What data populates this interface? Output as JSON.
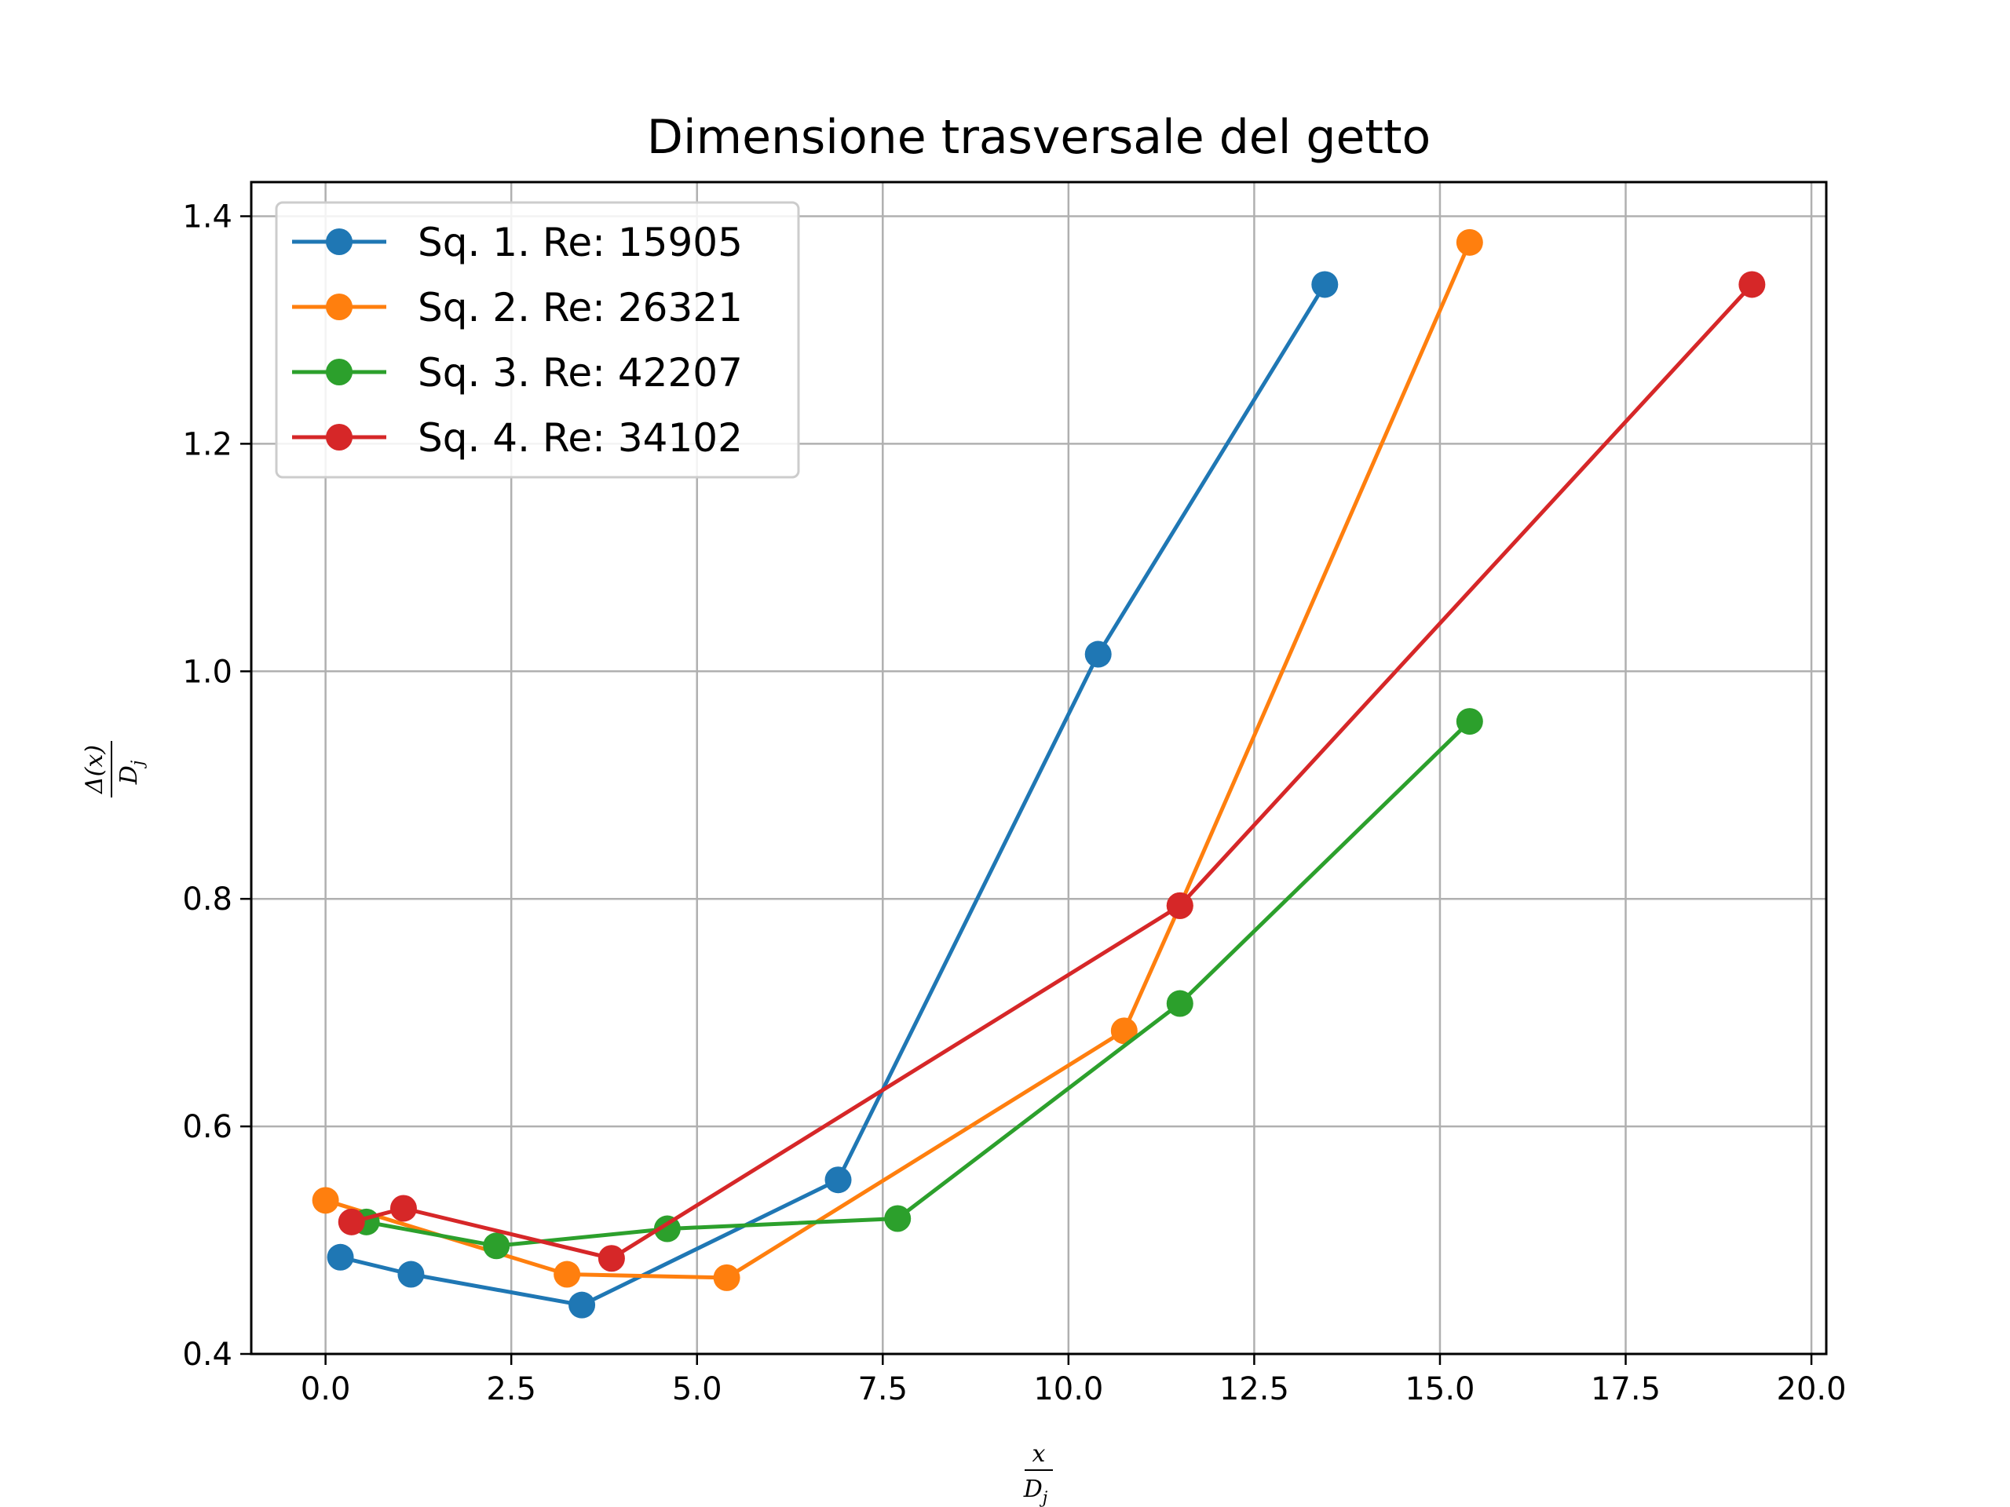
{
  "chart_data": {
    "type": "line",
    "title": "Dimensione trasversale del getto",
    "xlabel": {
      "numerator": "x",
      "denominator": "D",
      "denominator_sub": "j"
    },
    "ylabel": {
      "numerator": "Δ(x)",
      "denominator": "D",
      "denominator_sub": "j"
    },
    "xlim": [
      -1.0,
      20.2
    ],
    "ylim": [
      0.4,
      1.43
    ],
    "xticks": [
      0.0,
      2.5,
      5.0,
      7.5,
      10.0,
      12.5,
      15.0,
      17.5,
      20.0
    ],
    "xtick_labels": [
      "0.0",
      "2.5",
      "5.0",
      "7.5",
      "10.0",
      "12.5",
      "15.0",
      "17.5",
      "20.0"
    ],
    "yticks": [
      0.4,
      0.6,
      0.8,
      1.0,
      1.2,
      1.4
    ],
    "ytick_labels": [
      "0.4",
      "0.6",
      "0.8",
      "1.0",
      "1.2",
      "1.4"
    ],
    "grid": true,
    "legend_position": "upper-left",
    "series": [
      {
        "name": "Sq. 1. Re: 15905",
        "color": "#1f77b4",
        "x": [
          0.2,
          1.15,
          3.45,
          6.9,
          10.4,
          13.45
        ],
        "y": [
          0.485,
          0.47,
          0.443,
          0.553,
          1.015,
          1.34
        ]
      },
      {
        "name": "Sq. 2. Re: 26321",
        "color": "#ff7f0e",
        "x": [
          0.0,
          3.25,
          5.4,
          10.75,
          11.5,
          15.4
        ],
        "y": [
          0.535,
          0.47,
          0.467,
          0.684,
          0.794,
          1.377
        ]
      },
      {
        "name": "Sq. 3. Re: 42207",
        "color": "#2ca02c",
        "x": [
          0.55,
          2.3,
          4.6,
          7.7,
          11.5,
          15.4
        ],
        "y": [
          0.516,
          0.495,
          0.51,
          0.519,
          0.708,
          0.956
        ]
      },
      {
        "name": "Sq. 4. Re: 34102",
        "color": "#d62728",
        "x": [
          0.35,
          1.05,
          3.85,
          11.5,
          19.2
        ],
        "y": [
          0.516,
          0.528,
          0.484,
          0.794,
          1.34
        ]
      }
    ]
  }
}
